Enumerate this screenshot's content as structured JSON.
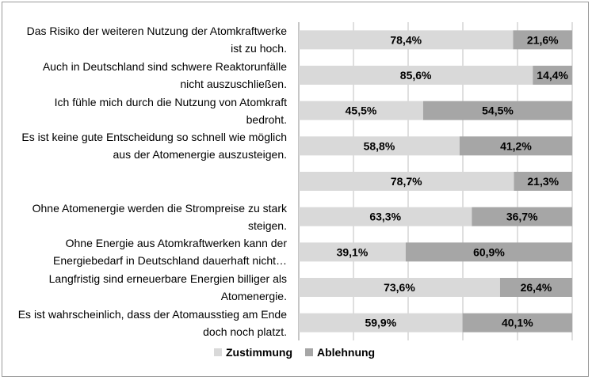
{
  "chart_data": {
    "type": "bar",
    "orientation": "horizontal",
    "stacked": true,
    "percent": true,
    "categories": [
      "Das Risiko der weiteren Nutzung der Atomkraftwerke ist zu hoch.",
      "Auch in Deutschland sind schwere Reaktorunfälle nicht auszuschließen.",
      "Ich fühle mich durch die Nutzung von Atomkraft bedroht.",
      "Es ist keine gute Entscheidung so schnell wie möglich aus der Atomenergie auszusteigen.",
      "",
      "Ohne Atomenergie werden die Strompreise zu stark steigen.",
      "Ohne Energie aus Atomkraftwerken kann der Energiebedarf in Deutschland dauerhaft nicht…",
      "Langfristig sind erneuerbare Energien billiger als Atomenergie.",
      "Es ist wahrscheinlich, dass der Atomausstieg am Ende doch noch platzt."
    ],
    "series": [
      {
        "name": "Zustimmung",
        "color": "#d9d9d9",
        "values": [
          78.4,
          85.6,
          45.5,
          58.8,
          78.7,
          63.3,
          39.1,
          73.6,
          59.9
        ]
      },
      {
        "name": "Ablehnung",
        "color": "#a6a6a6",
        "values": [
          21.6,
          14.4,
          54.5,
          41.2,
          21.3,
          36.7,
          60.9,
          26.4,
          40.1
        ]
      }
    ],
    "data_labels": [
      [
        "78,4%",
        "85,6%",
        "45,5%",
        "58,8%",
        "78,7%",
        "63,3%",
        "39,1%",
        "73,6%",
        "59,9%"
      ],
      [
        "21,6%",
        "14,4%",
        "54,5%",
        "41,2%",
        "21,3%",
        "36,7%",
        "60,9%",
        "26,4%",
        "40,1%"
      ]
    ],
    "xlim": [
      0,
      100
    ],
    "grid": true,
    "legend": "bottom",
    "title": "",
    "xlabel": "",
    "ylabel": ""
  }
}
